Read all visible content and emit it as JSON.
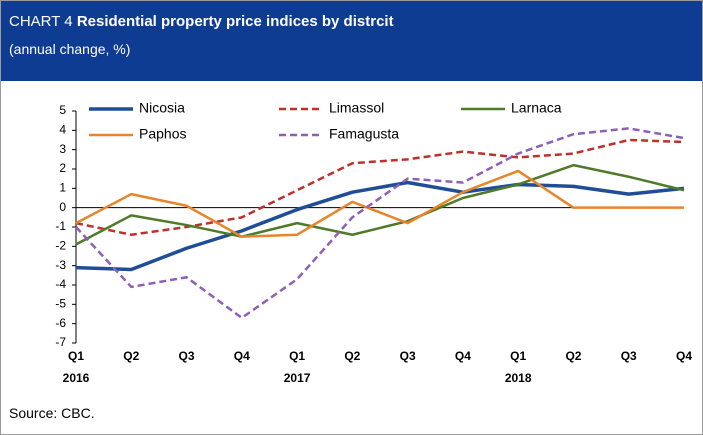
{
  "chart_data": {
    "type": "line",
    "title_prefix": "CHART 4",
    "title": "Residential property price indices by distrcit",
    "subtitle": "(annual change, %)",
    "source": "Source: CBC.",
    "categories": [
      "Q1",
      "Q2",
      "Q3",
      "Q4",
      "Q1",
      "Q2",
      "Q3",
      "Q4",
      "Q1",
      "Q2",
      "Q3",
      "Q4"
    ],
    "years": [
      "2016",
      "2017",
      "2018"
    ],
    "ylim": [
      -7,
      5
    ],
    "yticks": [
      -7,
      -6,
      -5,
      -4,
      -3,
      -2,
      -1,
      0,
      1,
      2,
      3,
      4,
      5
    ],
    "series": [
      {
        "name": "Nicosia",
        "color": "#1f4e96",
        "dashed": false,
        "values": [
          -3.1,
          -3.2,
          -2.1,
          -1.2,
          -0.1,
          0.8,
          1.3,
          0.8,
          1.2,
          1.1,
          0.7,
          1.0
        ]
      },
      {
        "name": "Limassol",
        "color": "#c0302a",
        "dashed": true,
        "values": [
          -0.8,
          -1.4,
          -1.0,
          -0.5,
          0.9,
          2.3,
          2.5,
          2.9,
          2.6,
          2.8,
          3.5,
          3.4
        ]
      },
      {
        "name": "Larnaca",
        "color": "#4f7a28",
        "dashed": false,
        "values": [
          -1.9,
          -0.4,
          -0.9,
          -1.5,
          -0.8,
          -1.4,
          -0.7,
          0.5,
          1.2,
          2.2,
          1.6,
          0.9
        ]
      },
      {
        "name": "Paphos",
        "color": "#e8852a",
        "dashed": false,
        "values": [
          -0.8,
          0.7,
          0.1,
          -1.5,
          -1.4,
          0.3,
          -0.8,
          0.8,
          1.9,
          0.0,
          0.0,
          0.0
        ]
      },
      {
        "name": "Famagusta",
        "color": "#8e5fb5",
        "dashed": true,
        "values": [
          -1.0,
          -4.1,
          -3.6,
          -5.7,
          -3.7,
          -0.5,
          1.5,
          1.3,
          2.8,
          3.8,
          4.1,
          3.6
        ]
      }
    ]
  }
}
